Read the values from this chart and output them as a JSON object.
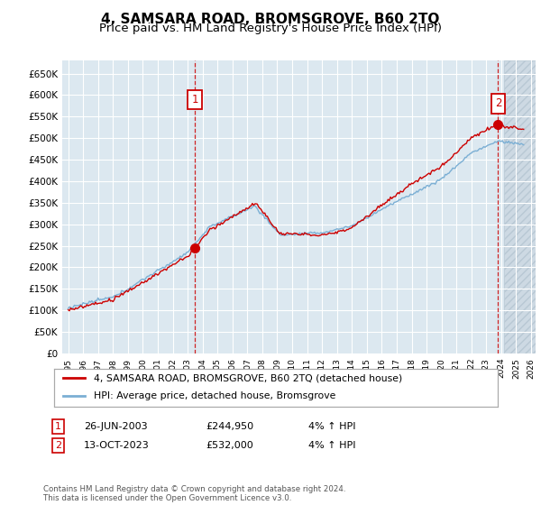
{
  "title": "4, SAMSARA ROAD, BROMSGROVE, B60 2TQ",
  "subtitle": "Price paid vs. HM Land Registry's House Price Index (HPI)",
  "ylim": [
    0,
    680000
  ],
  "yticks": [
    0,
    50000,
    100000,
    150000,
    200000,
    250000,
    300000,
    350000,
    400000,
    450000,
    500000,
    550000,
    600000,
    650000
  ],
  "ytick_labels": [
    "£0",
    "£50K",
    "£100K",
    "£150K",
    "£200K",
    "£250K",
    "£300K",
    "£350K",
    "£400K",
    "£450K",
    "£500K",
    "£550K",
    "£600K",
    "£650K"
  ],
  "sale1_year": 2003.49,
  "sale1_price": 244950,
  "sale1_label": "1",
  "sale1_date": "26-JUN-2003",
  "sale1_hpi_pct": "4% ↑ HPI",
  "sale2_year": 2023.79,
  "sale2_price": 532000,
  "sale2_label": "2",
  "sale2_date": "13-OCT-2023",
  "sale2_hpi_pct": "4% ↑ HPI",
  "line_color_property": "#cc0000",
  "line_color_hpi": "#7bafd4",
  "background_color": "#dce8f0",
  "grid_color": "#ffffff",
  "legend_label_property": "4, SAMSARA ROAD, BROMSGROVE, B60 2TQ (detached house)",
  "legend_label_hpi": "HPI: Average price, detached house, Bromsgrove",
  "footer": "Contains HM Land Registry data © Crown copyright and database right 2024.\nThis data is licensed under the Open Government Licence v3.0.",
  "title_fontsize": 11,
  "subtitle_fontsize": 9.5
}
